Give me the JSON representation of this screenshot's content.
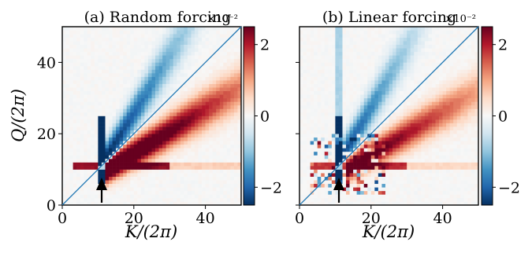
{
  "chart_data": [
    {
      "type": "heatmap",
      "title": "(a) Random forcing",
      "xlabel": "K/(2π)",
      "ylabel": "Q/(2π)",
      "xlim": [
        0,
        50
      ],
      "ylim": [
        0,
        50
      ],
      "x_ticks": [
        "0",
        "20",
        "40"
      ],
      "y_ticks": [
        "0",
        "20",
        "40"
      ],
      "colorbar": {
        "range": [
          -2.5,
          2.5
        ],
        "ticks": [
          "−2",
          "0",
          "2"
        ],
        "exponent": "×10⁻²",
        "cmap": "RdBu_r"
      },
      "diagonal_line": "Q = K",
      "arrow_at_k": 11,
      "features": [
        {
          "name": "negative band above diagonal",
          "from_k": 11,
          "to_k": 42,
          "mean_value": -0.02
        },
        {
          "name": "positive band below diagonal",
          "from_k": 14,
          "to_k": 50,
          "mean_value": 0.015
        },
        {
          "name": "vertical stripe at forcing scale",
          "k": 11,
          "q_range": [
            7,
            24
          ],
          "value": -0.025
        },
        {
          "name": "horizontal stripe at forcing scale",
          "q": 11,
          "k_range": [
            3,
            50
          ],
          "value": 0.01
        }
      ]
    },
    {
      "type": "heatmap",
      "title": "(b) Linear forcing",
      "xlabel": "K/(2π)",
      "ylabel": "",
      "xlim": [
        0,
        50
      ],
      "ylim": [
        0,
        50
      ],
      "x_ticks": [
        "0",
        "20",
        "40"
      ],
      "y_ticks": [],
      "colorbar": {
        "range": [
          -2.5,
          2.5
        ],
        "ticks": [
          "−2",
          "0",
          "2"
        ],
        "exponent": "×10⁻²",
        "cmap": "RdBu_r"
      },
      "diagonal_line": "Q = K",
      "arrow_at_k": 11,
      "features": [
        {
          "name": "negative band above diagonal",
          "from_k": 11,
          "to_k": 35,
          "mean_value": -0.018
        },
        {
          "name": "positive band below diagonal",
          "from_k": 14,
          "to_k": 50,
          "mean_value": 0.012
        },
        {
          "name": "vertical stripe at forcing scale",
          "k": 11,
          "q_range": [
            7,
            50
          ],
          "value": -0.02
        },
        {
          "name": "horizontal stripe at forcing scale",
          "q": 11,
          "k_range": [
            3,
            50
          ],
          "value": 0.008
        }
      ]
    }
  ]
}
